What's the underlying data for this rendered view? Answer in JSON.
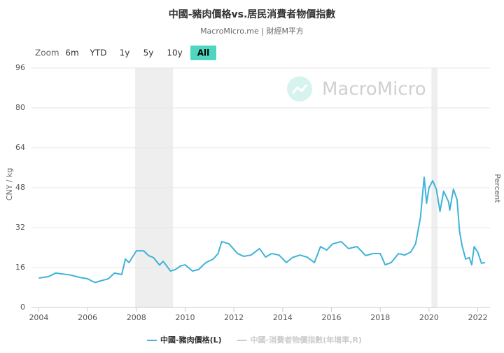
{
  "chart_data": {
    "type": "line",
    "title": "中國-豬肉價格vs.居民消費者物價指數",
    "subtitle": "MacroMicro.me | 財經M平方",
    "watermark": "MacroMicro",
    "zoom": {
      "label": "Zoom",
      "buttons": [
        "6m",
        "YTD",
        "1y",
        "5y",
        "10y",
        "All"
      ],
      "active": 5
    },
    "y_label": "CNY / kg",
    "y2_label": "Percent",
    "xlim": [
      2003.7,
      2022.5
    ],
    "xticks": [
      2004,
      2006,
      2008,
      2010,
      2012,
      2014,
      2016,
      2018,
      2020,
      2022
    ],
    "ylim": [
      0,
      96
    ],
    "yticks": [
      0,
      16,
      32,
      48,
      64,
      80,
      96
    ],
    "grid": true,
    "shaded_ranges": [
      [
        2007.95,
        2009.5
      ],
      [
        2020.1,
        2020.35
      ]
    ],
    "x": [
      2004.0,
      2004.4,
      2004.7,
      2005.3,
      2005.7,
      2006.0,
      2006.3,
      2006.55,
      2006.85,
      2007.1,
      2007.4,
      2007.55,
      2007.7,
      2008.0,
      2008.3,
      2008.5,
      2008.7,
      2008.95,
      2009.1,
      2009.4,
      2009.6,
      2009.8,
      2010.0,
      2010.3,
      2010.55,
      2010.85,
      2011.15,
      2011.35,
      2011.5,
      2011.8,
      2012.15,
      2012.4,
      2012.7,
      2013.05,
      2013.3,
      2013.55,
      2013.85,
      2014.15,
      2014.4,
      2014.7,
      2015.0,
      2015.3,
      2015.55,
      2015.8,
      2016.05,
      2016.4,
      2016.7,
      2017.05,
      2017.4,
      2017.7,
      2018.0,
      2018.2,
      2018.45,
      2018.75,
      2019.0,
      2019.25,
      2019.45,
      2019.65,
      2019.8,
      2019.9,
      2020.0,
      2020.15,
      2020.3,
      2020.45,
      2020.6,
      2020.8,
      2020.85,
      2021.0,
      2021.15,
      2021.25,
      2021.35,
      2021.5,
      2021.65,
      2021.75,
      2021.85,
      2022.0,
      2022.15,
      2022.3
    ],
    "series": [
      {
        "name": "中國-豬肉價格(L)",
        "color": "#3fb3d8",
        "values": [
          11.8,
          12.4,
          13.8,
          13,
          12,
          11.5,
          10,
          10.7,
          11.5,
          13.8,
          13.2,
          19.4,
          18,
          22.7,
          22.7,
          20.8,
          20,
          17,
          18.5,
          14.6,
          15.2,
          16.6,
          17.1,
          14.6,
          15.2,
          18,
          19.4,
          21.6,
          26.4,
          25.5,
          21.6,
          20.5,
          21,
          23.6,
          20.2,
          21.6,
          21,
          18,
          20,
          21,
          20.2,
          18,
          24.4,
          23,
          25.5,
          26.4,
          23.6,
          24.4,
          20.8,
          21.6,
          21.6,
          17.1,
          18,
          21.6,
          21,
          22.2,
          25.5,
          36.2,
          52.2,
          41.8,
          48,
          50.8,
          47.4,
          38.5,
          46.6,
          42.4,
          39,
          47.4,
          43.2,
          30.6,
          25,
          19.4,
          20,
          17.1,
          24.4,
          22.2,
          17.7,
          18
        ]
      },
      {
        "name": "中國-消費者物價指數(年增率,R)",
        "color": "#cccccc",
        "hidden": true
      }
    ]
  }
}
